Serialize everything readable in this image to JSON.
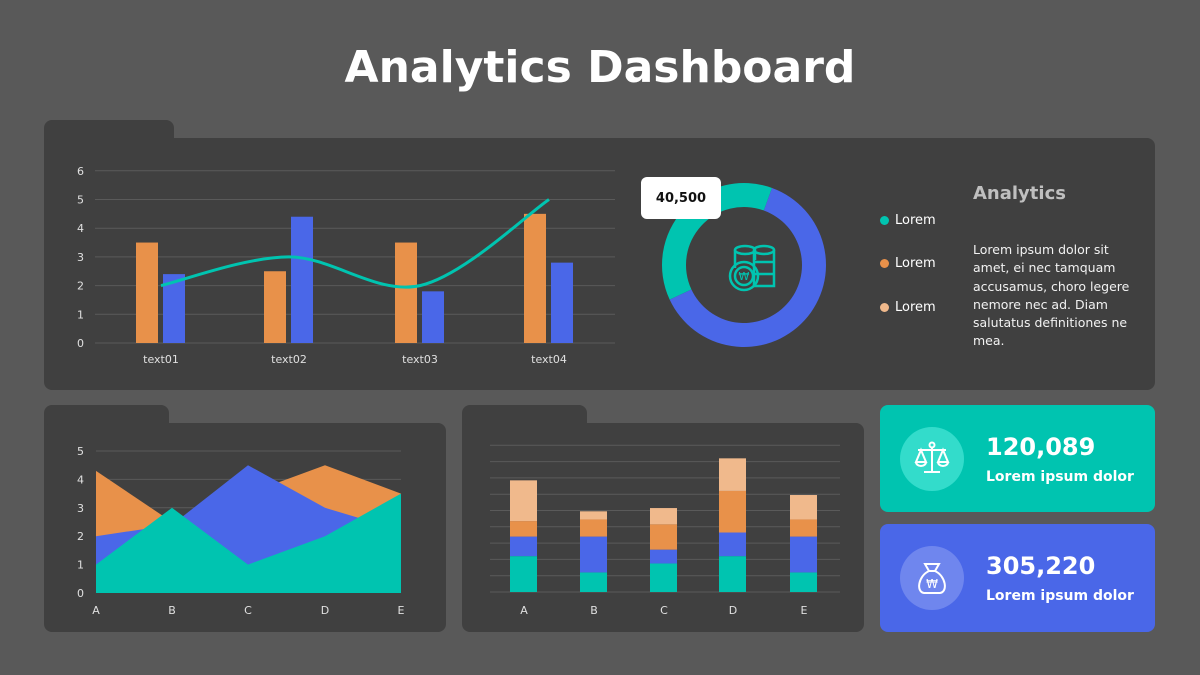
{
  "title": "Analytics Dashboard",
  "colors": {
    "teal": "#00c4b0",
    "blue": "#4a67e8",
    "orange": "#e8914a",
    "light_orange": "#f0b98c",
    "panel": "#404040",
    "background": "#595959"
  },
  "side": {
    "heading": "Analytics",
    "text": "Lorem ipsum dolor sit amet, ei nec tamquam accusamus, choro legere nemore  nec ad. Diam salutatus definitiones ne mea."
  },
  "legend": [
    {
      "label": "Lorem",
      "color": "#00c4b0"
    },
    {
      "label": "Lorem",
      "color": "#e8914a"
    },
    {
      "label": "Lorem",
      "color": "#f0b98c"
    }
  ],
  "cards": [
    {
      "value": "120,089",
      "label": "Lorem ipsum dolor",
      "icon": "scales-icon",
      "color": "#00c4b0"
    },
    {
      "value": "305,220",
      "label": "Lorem ipsum dolor",
      "icon": "money-bag-icon",
      "color": "#4a67e8"
    }
  ],
  "chart_data": [
    {
      "type": "bar",
      "categories": [
        "text01",
        "text02",
        "text03",
        "text04"
      ],
      "ylim": [
        0,
        6
      ],
      "yticks": [
        "0",
        "1",
        "2",
        "3",
        "4",
        "5",
        "6"
      ],
      "grid": true,
      "series": [
        {
          "kind": "bar",
          "color": "#e8914a",
          "values": [
            3.5,
            2.5,
            3.5,
            4.5
          ]
        },
        {
          "kind": "bar",
          "color": "#4a67e8",
          "values": [
            2.4,
            4.4,
            1.8,
            2.8
          ]
        },
        {
          "kind": "line",
          "color": "#00c4b0",
          "values": [
            2,
            3,
            2,
            5
          ]
        }
      ]
    },
    {
      "type": "pie",
      "callout": "40,500",
      "icon": "coins-icon",
      "slices": [
        {
          "color": "#00c4b0",
          "value": 37.5
        },
        {
          "color": "#4a67e8",
          "value": 62.5
        }
      ]
    },
    {
      "type": "area",
      "categories": [
        "A",
        "B",
        "C",
        "D",
        "E"
      ],
      "ylim": [
        0,
        5
      ],
      "yticks": [
        "0",
        "1",
        "2",
        "3",
        "4",
        "5"
      ],
      "grid": true,
      "series": [
        {
          "color": "#e8914a",
          "values": [
            4.3,
            2.5,
            3.5,
            4.5,
            3.5
          ]
        },
        {
          "color": "#4a67e8",
          "values": [
            2,
            2.4,
            4.5,
            3,
            2.2
          ]
        },
        {
          "color": "#00c4b0",
          "values": [
            1,
            3,
            1,
            2,
            3.5
          ]
        }
      ]
    },
    {
      "type": "bar",
      "stacked": true,
      "categories": [
        "A",
        "B",
        "C",
        "D",
        "E"
      ],
      "ylim": [
        0,
        9
      ],
      "grid": true,
      "series": [
        {
          "color": "#00c4b0",
          "values": [
            2.2,
            1.2,
            1.75,
            2.2,
            1.2
          ]
        },
        {
          "color": "#4a67e8",
          "values": [
            1.2,
            2.2,
            0.85,
            1.45,
            2.2
          ]
        },
        {
          "color": "#e8914a",
          "values": [
            0.95,
            1.05,
            1.55,
            2.55,
            1.05
          ]
        },
        {
          "color": "#f0b98c",
          "values": [
            2.5,
            0.5,
            1.0,
            2.0,
            1.5
          ]
        }
      ]
    }
  ]
}
